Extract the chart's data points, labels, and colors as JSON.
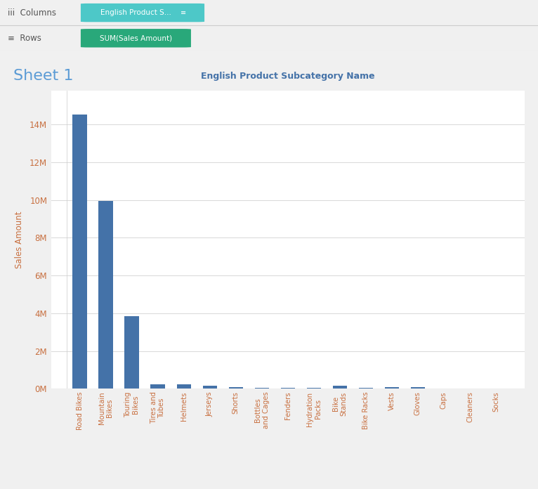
{
  "title": "Sheet 1",
  "col_label": "English Product Subcategory Name",
  "ylabel": "Sales Amount",
  "categories": [
    "Road Bikes",
    "Mountain\nBikes",
    "Touring\nBikes",
    "Tires and\nTubes",
    "Helmets",
    "Jerseys",
    "Shorts",
    "Bottles\nand Cages",
    "Fenders",
    "Hydration\nPacks",
    "Bike\nStands",
    "Bike Racks",
    "Vests",
    "Gloves",
    "Caps",
    "Cleaners",
    "Socks"
  ],
  "values": [
    14521584,
    9952760,
    3844801,
    245860,
    225335,
    172950,
    71319,
    39591,
    46638,
    40075,
    159591,
    39793,
    95564,
    76844,
    19293,
    7218,
    5765
  ],
  "bar_color": "#4472a8",
  "bg_color": "#f0f0f0",
  "plot_bg_color": "#ffffff",
  "grid_color": "#d8d8d8",
  "header_bg": "#e8e8e8",
  "header_row_bg": "#f2f2f2",
  "columns_label": "English Product S...",
  "rows_label": "SUM(Sales Amount)",
  "columns_pill_color": "#4dc8c8",
  "rows_pill_color": "#29a87a",
  "title_color": "#5b9bd5",
  "axis_tick_color": "#c87040",
  "axis_label_color": "#c87040",
  "col_header_color": "#4472a8",
  "y_ticks": [
    0,
    2000000,
    4000000,
    6000000,
    8000000,
    10000000,
    12000000,
    14000000
  ],
  "y_tick_labels": [
    "0M",
    "2M",
    "4M",
    "6M",
    "8M",
    "10M",
    "12M",
    "14M"
  ],
  "divider_color": "#cccccc",
  "border_color": "#d0d0d0"
}
